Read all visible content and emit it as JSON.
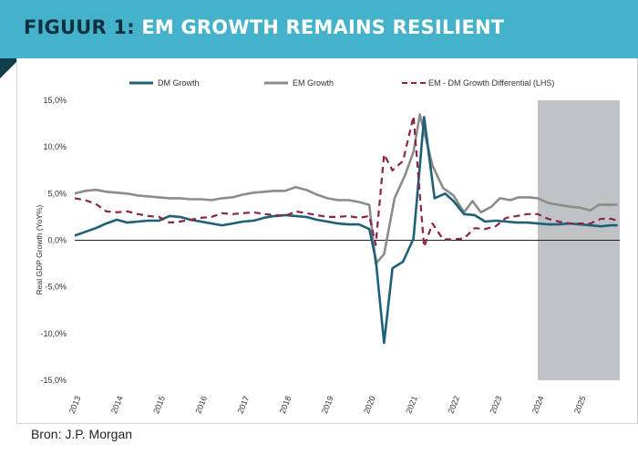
{
  "header": {
    "prefix": "FIGUUR 1:",
    "title": "EM GROWTH REMAINS RESILIENT"
  },
  "source": "Bron: J.P. Morgan",
  "colors": {
    "banner": "#44b2cb",
    "dm": "#1f5f78",
    "em": "#8c8c8c",
    "diff": "#8a2448",
    "shade": "#bfc3c5"
  },
  "chart_data": {
    "type": "line",
    "title": "",
    "xlabel": "",
    "ylabel": "Real GDP Growth (YoY%)",
    "ylim": [
      -15,
      15
    ],
    "yticks": [
      15,
      10,
      5,
      0,
      -5,
      -10,
      -15
    ],
    "ytick_labels": [
      "15,0%",
      "10,0%",
      "5,0%",
      "0,0%",
      "-5,0%",
      "-10,0%",
      "-15,0%"
    ],
    "xlim": [
      2013.0,
      2025.95
    ],
    "xticks": [
      2013,
      2014,
      2015,
      2016,
      2017,
      2018,
      2019,
      2020,
      2021,
      2022,
      2023,
      2024,
      2025
    ],
    "xtick_labels": [
      "2013",
      "2014",
      "2015",
      "2016",
      "2017",
      "2018",
      "2019",
      "2020",
      "2021",
      "2022",
      "2023",
      "2024",
      "2025"
    ],
    "forecast_shade": {
      "from": 2024.0,
      "to": 2025.95
    },
    "legend": [
      "DM Growth",
      "EM Growth",
      "EM - DM Growth Differential (LHS)"
    ],
    "series": [
      {
        "name": "DM Growth",
        "style": "solid",
        "points": [
          [
            2013.0,
            0.5
          ],
          [
            2013.25,
            0.9
          ],
          [
            2013.5,
            1.3
          ],
          [
            2013.75,
            1.8
          ],
          [
            2014.0,
            2.2
          ],
          [
            2014.25,
            1.9
          ],
          [
            2014.5,
            2.0
          ],
          [
            2014.75,
            2.1
          ],
          [
            2015.0,
            2.1
          ],
          [
            2015.25,
            2.6
          ],
          [
            2015.5,
            2.5
          ],
          [
            2015.75,
            2.2
          ],
          [
            2016.0,
            2.0
          ],
          [
            2016.25,
            1.8
          ],
          [
            2016.5,
            1.6
          ],
          [
            2016.75,
            1.8
          ],
          [
            2017.0,
            2.0
          ],
          [
            2017.25,
            2.1
          ],
          [
            2017.5,
            2.4
          ],
          [
            2017.75,
            2.6
          ],
          [
            2018.0,
            2.7
          ],
          [
            2018.25,
            2.6
          ],
          [
            2018.5,
            2.5
          ],
          [
            2018.75,
            2.2
          ],
          [
            2019.0,
            2.0
          ],
          [
            2019.25,
            1.8
          ],
          [
            2019.5,
            1.7
          ],
          [
            2019.75,
            1.7
          ],
          [
            2020.0,
            1.2
          ],
          [
            2020.15,
            -2.0
          ],
          [
            2020.35,
            -11.0
          ],
          [
            2020.55,
            -3.0
          ],
          [
            2020.8,
            -2.3
          ],
          [
            2021.05,
            0.2
          ],
          [
            2021.3,
            13.2
          ],
          [
            2021.55,
            4.5
          ],
          [
            2021.8,
            5.0
          ],
          [
            2022.0,
            4.2
          ],
          [
            2022.25,
            2.8
          ],
          [
            2022.5,
            2.7
          ],
          [
            2022.75,
            2.0
          ],
          [
            2023.0,
            2.1
          ],
          [
            2023.25,
            2.0
          ],
          [
            2023.5,
            1.9
          ],
          [
            2023.75,
            1.9
          ],
          [
            2024.0,
            1.8
          ],
          [
            2024.25,
            1.7
          ],
          [
            2024.5,
            1.7
          ],
          [
            2024.75,
            1.8
          ],
          [
            2025.0,
            1.7
          ],
          [
            2025.25,
            1.6
          ],
          [
            2025.5,
            1.5
          ],
          [
            2025.75,
            1.6
          ],
          [
            2025.9,
            1.6
          ]
        ]
      },
      {
        "name": "EM Growth",
        "style": "solid",
        "points": [
          [
            2013.0,
            5.0
          ],
          [
            2013.25,
            5.3
          ],
          [
            2013.5,
            5.4
          ],
          [
            2013.75,
            5.2
          ],
          [
            2014.0,
            5.1
          ],
          [
            2014.25,
            5.0
          ],
          [
            2014.5,
            4.8
          ],
          [
            2014.75,
            4.7
          ],
          [
            2015.0,
            4.6
          ],
          [
            2015.25,
            4.5
          ],
          [
            2015.5,
            4.5
          ],
          [
            2015.75,
            4.4
          ],
          [
            2016.0,
            4.4
          ],
          [
            2016.25,
            4.3
          ],
          [
            2016.5,
            4.5
          ],
          [
            2016.75,
            4.6
          ],
          [
            2017.0,
            4.9
          ],
          [
            2017.25,
            5.1
          ],
          [
            2017.5,
            5.2
          ],
          [
            2017.75,
            5.3
          ],
          [
            2018.0,
            5.3
          ],
          [
            2018.25,
            5.7
          ],
          [
            2018.5,
            5.4
          ],
          [
            2018.75,
            4.9
          ],
          [
            2019.0,
            4.5
          ],
          [
            2019.25,
            4.3
          ],
          [
            2019.5,
            4.3
          ],
          [
            2019.75,
            4.1
          ],
          [
            2020.0,
            3.8
          ],
          [
            2020.15,
            -2.5
          ],
          [
            2020.35,
            -1.5
          ],
          [
            2020.6,
            4.5
          ],
          [
            2020.85,
            7.0
          ],
          [
            2021.05,
            9.5
          ],
          [
            2021.2,
            13.5
          ],
          [
            2021.5,
            8.0
          ],
          [
            2021.75,
            5.6
          ],
          [
            2022.0,
            4.8
          ],
          [
            2022.25,
            3.0
          ],
          [
            2022.45,
            4.2
          ],
          [
            2022.65,
            3.0
          ],
          [
            2022.9,
            3.6
          ],
          [
            2023.1,
            4.5
          ],
          [
            2023.35,
            4.3
          ],
          [
            2023.55,
            4.6
          ],
          [
            2023.8,
            4.6
          ],
          [
            2024.0,
            4.5
          ],
          [
            2024.25,
            4.0
          ],
          [
            2024.5,
            3.8
          ],
          [
            2024.75,
            3.6
          ],
          [
            2025.0,
            3.5
          ],
          [
            2025.25,
            3.2
          ],
          [
            2025.45,
            3.8
          ],
          [
            2025.7,
            3.8
          ],
          [
            2025.9,
            3.8
          ]
        ]
      },
      {
        "name": "EM - DM Growth Differential (LHS)",
        "style": "dashed",
        "points": [
          [
            2013.0,
            4.5
          ],
          [
            2013.25,
            4.3
          ],
          [
            2013.5,
            3.9
          ],
          [
            2013.75,
            3.1
          ],
          [
            2014.0,
            3.0
          ],
          [
            2014.25,
            3.1
          ],
          [
            2014.5,
            2.8
          ],
          [
            2014.75,
            2.6
          ],
          [
            2015.0,
            2.5
          ],
          [
            2015.25,
            1.9
          ],
          [
            2015.5,
            2.0
          ],
          [
            2015.75,
            2.2
          ],
          [
            2016.0,
            2.4
          ],
          [
            2016.25,
            2.5
          ],
          [
            2016.5,
            2.9
          ],
          [
            2016.75,
            2.8
          ],
          [
            2017.0,
            2.9
          ],
          [
            2017.25,
            3.0
          ],
          [
            2017.5,
            2.8
          ],
          [
            2017.75,
            2.7
          ],
          [
            2018.0,
            2.6
          ],
          [
            2018.25,
            3.1
          ],
          [
            2018.5,
            2.9
          ],
          [
            2018.75,
            2.7
          ],
          [
            2019.0,
            2.5
          ],
          [
            2019.25,
            2.5
          ],
          [
            2019.5,
            2.6
          ],
          [
            2019.75,
            2.4
          ],
          [
            2020.0,
            2.6
          ],
          [
            2020.15,
            -0.5
          ],
          [
            2020.35,
            9.2
          ],
          [
            2020.55,
            7.5
          ],
          [
            2020.8,
            8.5
          ],
          [
            2021.05,
            13.3
          ],
          [
            2021.3,
            -0.7
          ],
          [
            2021.5,
            1.8
          ],
          [
            2021.75,
            0.1
          ],
          [
            2022.0,
            0.1
          ],
          [
            2022.25,
            0.2
          ],
          [
            2022.5,
            1.3
          ],
          [
            2022.75,
            1.2
          ],
          [
            2023.0,
            1.5
          ],
          [
            2023.25,
            2.4
          ],
          [
            2023.5,
            2.6
          ],
          [
            2023.75,
            2.8
          ],
          [
            2024.0,
            2.8
          ],
          [
            2024.25,
            2.3
          ],
          [
            2024.5,
            2.0
          ],
          [
            2024.75,
            1.8
          ],
          [
            2025.0,
            1.8
          ],
          [
            2025.25,
            1.8
          ],
          [
            2025.5,
            2.3
          ],
          [
            2025.75,
            2.3
          ],
          [
            2025.9,
            2.1
          ]
        ]
      }
    ]
  }
}
